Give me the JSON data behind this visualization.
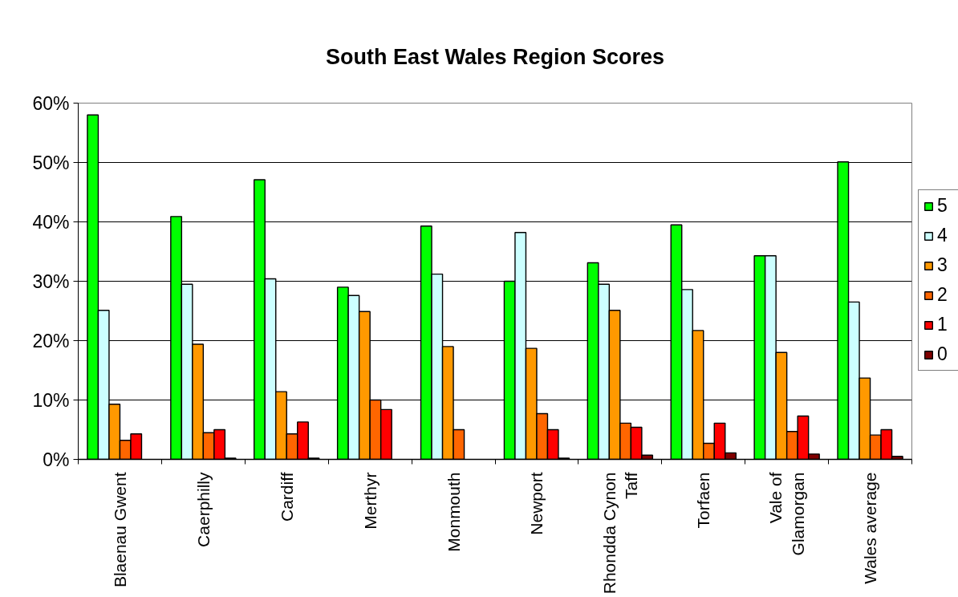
{
  "chart_data": {
    "type": "bar",
    "title": "South East Wales Region Scores",
    "categories": [
      "Blaenau Gwent",
      "Caerphilly",
      "Cardiff",
      "Merthyr",
      "Monmouth",
      "Newport",
      "Rhondda Cynon Taff",
      "Torfaen",
      "Vale of Glamorgan",
      "Wales average"
    ],
    "series": [
      {
        "name": "5",
        "color": "#00ff00",
        "values": [
          58,
          40.9,
          47.1,
          29.0,
          39.3,
          30.0,
          33.1,
          39.5,
          34.3,
          50.1
        ]
      },
      {
        "name": "4",
        "color": "#ccffff",
        "values": [
          25.1,
          29.5,
          30.4,
          27.6,
          31.2,
          38.2,
          29.5,
          28.6,
          34.3,
          26.5
        ]
      },
      {
        "name": "3",
        "color": "#ff9900",
        "values": [
          9.3,
          19.4,
          11.4,
          24.9,
          19.0,
          18.7,
          25.1,
          21.7,
          18.0,
          13.7
        ]
      },
      {
        "name": "2",
        "color": "#ff6600",
        "values": [
          3.2,
          4.5,
          4.3,
          10.0,
          5.0,
          7.7,
          6.1,
          2.7,
          4.7,
          4.1
        ]
      },
      {
        "name": "1",
        "color": "#ff0000",
        "values": [
          4.3,
          5.0,
          6.3,
          8.4,
          null,
          5.0,
          5.4,
          6.1,
          7.3,
          5.0
        ]
      },
      {
        "name": "0",
        "color": "#800000",
        "values": [
          null,
          0.2,
          0.2,
          null,
          null,
          0.2,
          0.7,
          1.1,
          0.9,
          0.5
        ]
      }
    ],
    "ylim": [
      0,
      60
    ],
    "yticks": [
      {
        "value": 0,
        "label": "0%"
      },
      {
        "value": 10,
        "label": "10%"
      },
      {
        "value": 20,
        "label": "20%"
      },
      {
        "value": 30,
        "label": "30%"
      },
      {
        "value": 40,
        "label": "40%"
      },
      {
        "value": 50,
        "label": "50%"
      },
      {
        "value": 60,
        "label": "60%"
      }
    ],
    "grid": "y",
    "legend": "right"
  }
}
